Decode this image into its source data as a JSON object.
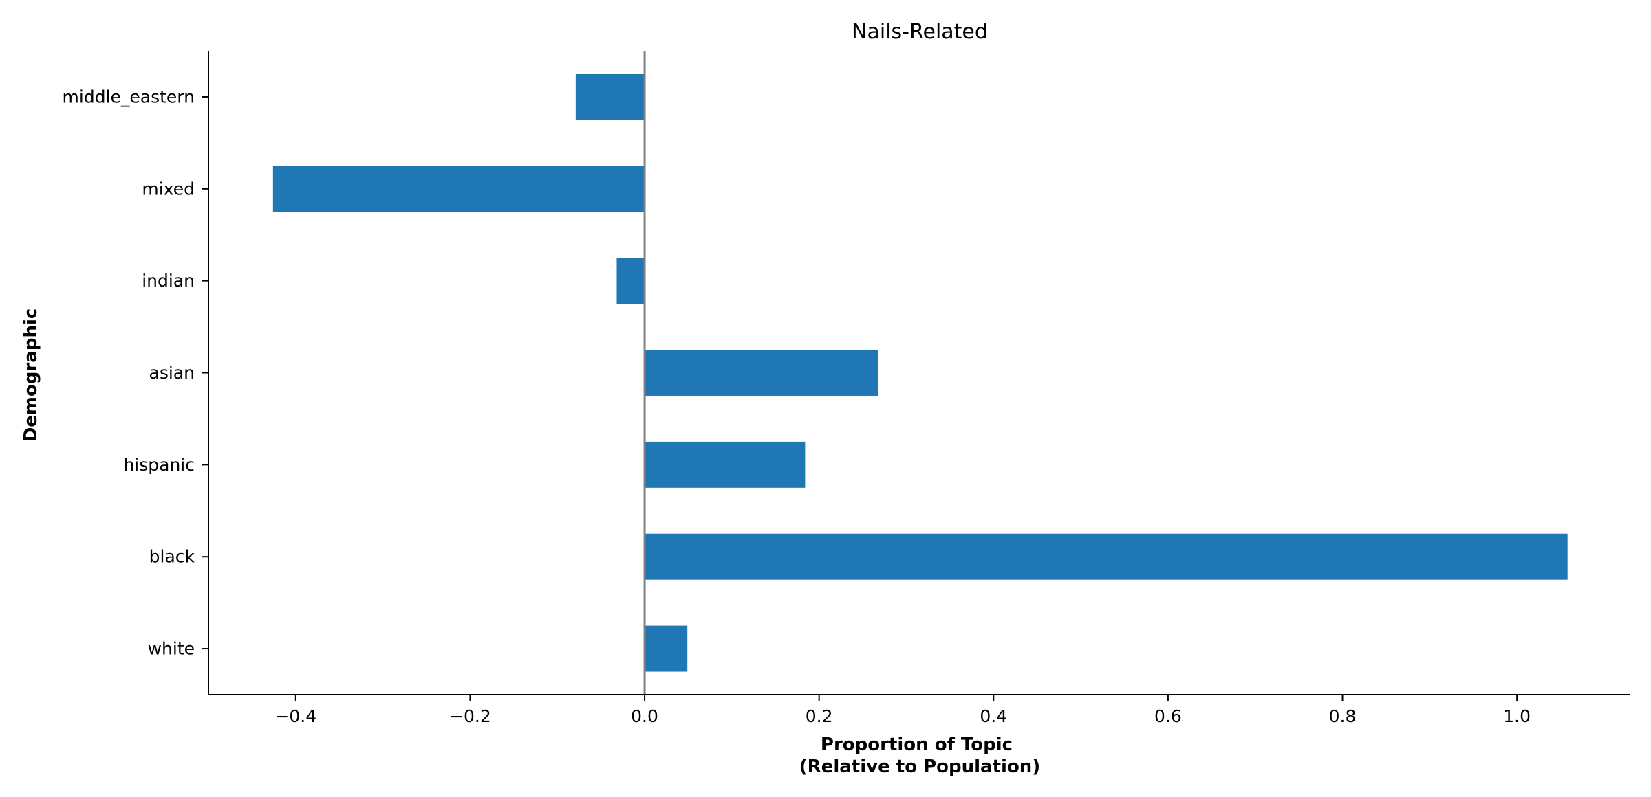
{
  "chart_data": {
    "type": "bar",
    "orientation": "horizontal",
    "title": "Nails-Related",
    "xlabel_lines": [
      "Proportion of Topic",
      "(Relative to Population)"
    ],
    "ylabel": "Demographic",
    "categories": [
      "middle_eastern",
      "mixed",
      "indian",
      "asian",
      "hispanic",
      "black",
      "white"
    ],
    "values": [
      -0.079,
      -0.426,
      -0.032,
      0.268,
      0.184,
      1.058,
      0.049
    ],
    "xlim": [
      -0.5,
      1.13
    ],
    "xticks": [
      -0.4,
      -0.2,
      0.0,
      0.2,
      0.4,
      0.6,
      0.8,
      1.0
    ],
    "xtick_labels": [
      "−0.4",
      "−0.2",
      "0.0",
      "0.2",
      "0.4",
      "0.6",
      "0.8",
      "1.0"
    ],
    "reference_line_x": 0.0,
    "bar_color": "#1f77b4",
    "reference_line_color": "#808080",
    "grid": false,
    "legend": "none"
  }
}
